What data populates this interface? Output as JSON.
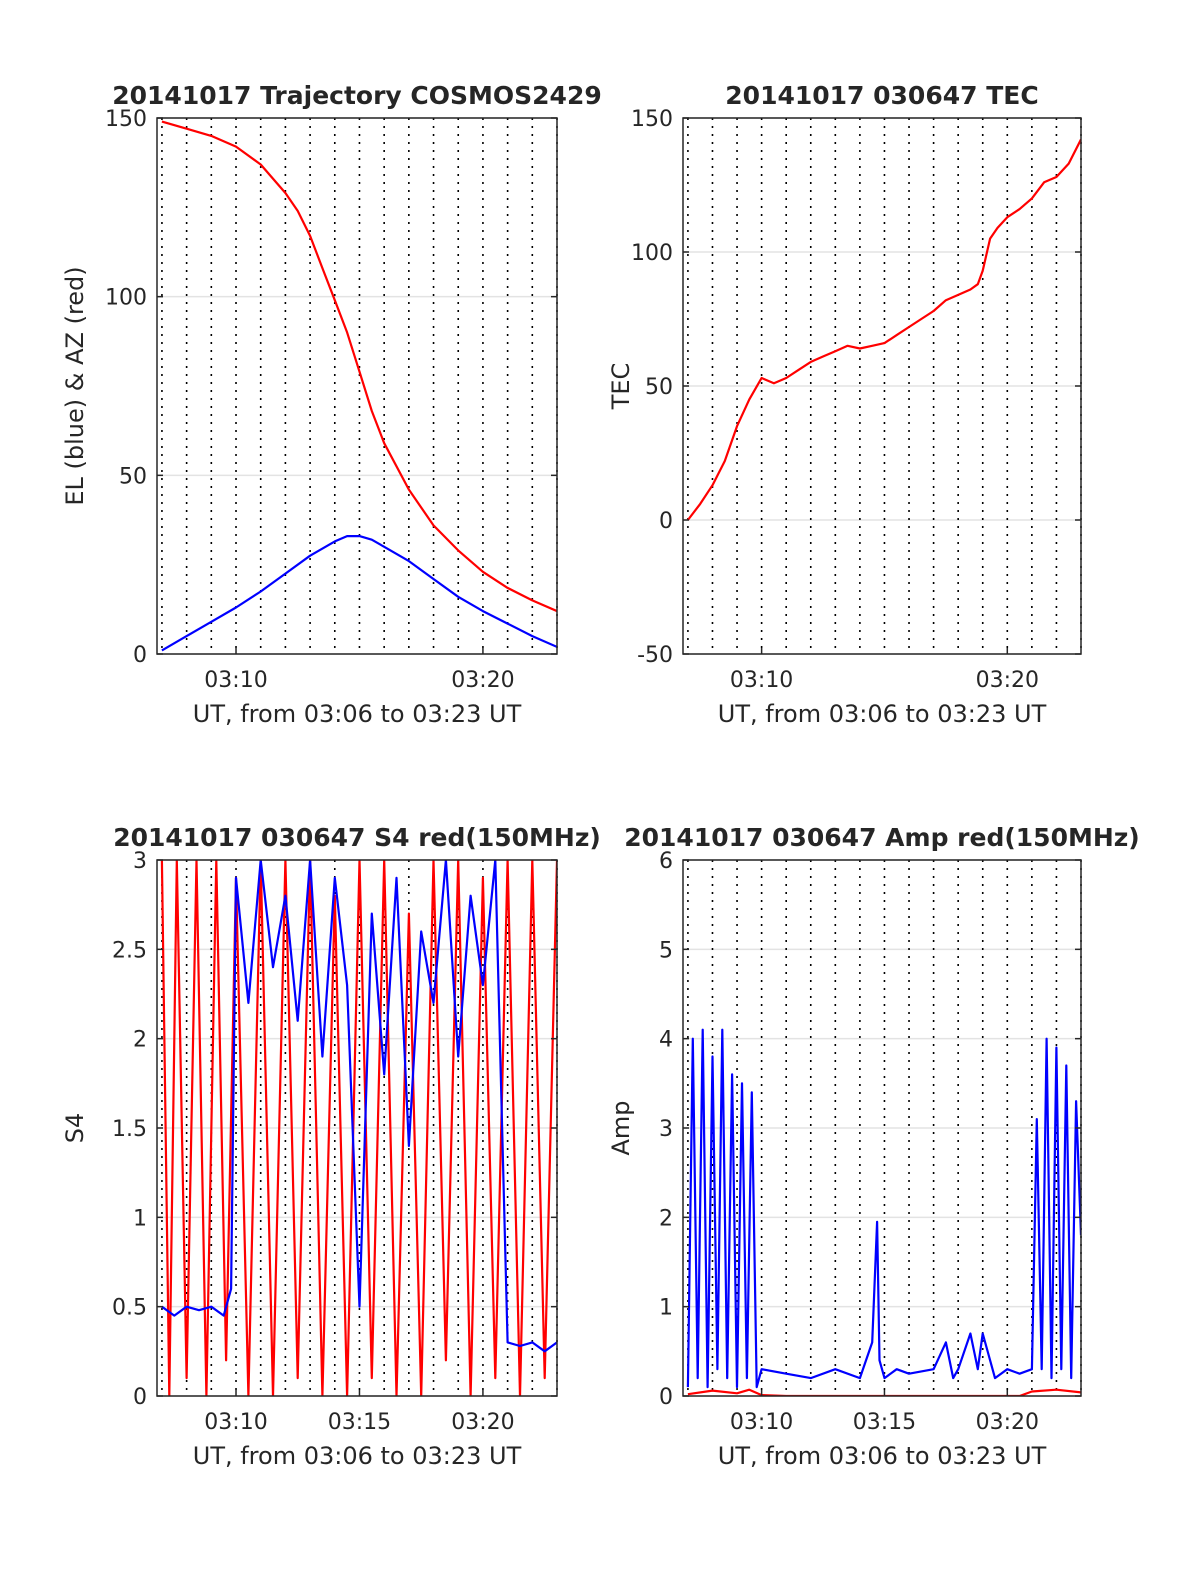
{
  "chart_data": [
    {
      "type": "line",
      "title": "20141017 Trajectory COSMOS2429",
      "xlabel": "UT, from 03:06 to 03:23 UT",
      "ylabel": "EL (blue) & AZ (red)",
      "xlim": [
        6.8,
        23.0
      ],
      "ylim": [
        0,
        150
      ],
      "xticks": [
        10,
        20
      ],
      "xtick_labels": [
        "03:10",
        "03:20"
      ],
      "yticks": [
        0,
        50,
        100,
        150
      ],
      "ytick_labels": [
        "0",
        "50",
        "100",
        "150"
      ],
      "grid": true,
      "series": [
        {
          "color": "#ff0000",
          "x": [
            7.0,
            8.0,
            9.0,
            10.0,
            11.0,
            12.0,
            12.5,
            13.0,
            13.5,
            14.0,
            14.5,
            15.0,
            15.5,
            16.0,
            17.0,
            18.0,
            19.0,
            20.0,
            21.0,
            22.0,
            23.0
          ],
          "y": [
            149,
            147,
            145,
            142,
            137,
            129,
            124,
            117,
            108,
            99,
            90,
            79,
            68,
            59,
            46,
            36,
            29,
            23,
            18.5,
            15,
            12
          ]
        },
        {
          "color": "#0000ff",
          "x": [
            7.0,
            8.0,
            9.0,
            10.0,
            11.0,
            12.0,
            13.0,
            14.0,
            14.5,
            15.0,
            15.5,
            16.0,
            17.0,
            18.0,
            19.0,
            20.0,
            21.0,
            22.0,
            23.0
          ],
          "y": [
            1,
            5,
            9,
            13,
            17.5,
            22.5,
            27.5,
            31.5,
            33,
            33,
            32,
            30,
            26,
            21,
            16,
            12,
            8.5,
            5,
            2
          ]
        }
      ]
    },
    {
      "type": "line",
      "title": "20141017 030647 TEC",
      "xlabel": "UT, from 03:06 to 03:23 UT",
      "ylabel": "TEC",
      "xlim": [
        6.8,
        23.0
      ],
      "ylim": [
        -50,
        150
      ],
      "xticks": [
        10,
        20
      ],
      "xtick_labels": [
        "03:10",
        "03:20"
      ],
      "yticks": [
        -50,
        0,
        50,
        100,
        150
      ],
      "ytick_labels": [
        "-50",
        "0",
        "50",
        "100",
        "150"
      ],
      "grid": true,
      "series": [
        {
          "color": "#ff0000",
          "x": [
            7.0,
            7.5,
            8.0,
            8.5,
            9.0,
            9.5,
            10.0,
            10.5,
            11.0,
            11.5,
            12.0,
            12.5,
            13.0,
            13.5,
            14.0,
            14.5,
            15.0,
            15.5,
            16.0,
            16.5,
            17.0,
            17.5,
            18.0,
            18.5,
            18.8,
            19.0,
            19.3,
            19.6,
            20.0,
            20.5,
            21.0,
            21.5,
            22.0,
            22.5,
            23.0
          ],
          "y": [
            0,
            6,
            13,
            22,
            35,
            45,
            53,
            51,
            53,
            56,
            59,
            61,
            63,
            65,
            64,
            65,
            66,
            69,
            72,
            75,
            78,
            82,
            84,
            86,
            88,
            93,
            105,
            109,
            113,
            116,
            120,
            126,
            128,
            133,
            142
          ]
        }
      ]
    },
    {
      "type": "line",
      "title": "20141017 030647 S4 red(150MHz)",
      "xlabel": "UT, from 03:06 to 03:23 UT",
      "ylabel": "S4",
      "xlim": [
        6.8,
        23.0
      ],
      "ylim": [
        0,
        3
      ],
      "xticks": [
        10,
        15,
        20
      ],
      "xtick_labels": [
        "03:10",
        "03:15",
        "03:20"
      ],
      "yticks": [
        0,
        0.5,
        1,
        1.5,
        2,
        2.5,
        3
      ],
      "ytick_labels": [
        "0",
        "0.5",
        "1",
        "1.5",
        "2",
        "2.5",
        "3"
      ],
      "grid": true,
      "series": [
        {
          "color": "#ff0000",
          "x": [
            7.0,
            7.3,
            7.6,
            8.0,
            8.4,
            8.8,
            9.2,
            9.6,
            10.0,
            10.5,
            11.0,
            11.5,
            12.0,
            12.5,
            13.0,
            13.5,
            14.0,
            14.5,
            15.0,
            15.5,
            16.0,
            16.5,
            17.0,
            17.5,
            18.0,
            18.5,
            19.0,
            19.5,
            20.0,
            20.5,
            21.0,
            21.5,
            22.0,
            22.5,
            23.0
          ],
          "y": [
            3,
            0,
            3,
            0.1,
            3,
            0,
            3,
            0.2,
            2.9,
            0,
            3,
            0,
            3,
            0.1,
            3,
            0,
            2.8,
            0,
            3,
            0.1,
            3,
            0,
            2.7,
            0,
            3,
            0.2,
            3,
            0,
            2.9,
            0.1,
            3,
            0,
            3,
            0.1,
            3
          ]
        },
        {
          "color": "#0000ff",
          "x": [
            7.0,
            7.5,
            8.0,
            8.5,
            9.0,
            9.5,
            9.8,
            10.0,
            10.5,
            11.0,
            11.5,
            12.0,
            12.5,
            13.0,
            13.5,
            14.0,
            14.5,
            15.0,
            15.5,
            16.0,
            16.5,
            17.0,
            17.5,
            18.0,
            18.5,
            19.0,
            19.5,
            20.0,
            20.5,
            21.0,
            21.5,
            22.0,
            22.5,
            23.0
          ],
          "y": [
            0.5,
            0.45,
            0.5,
            0.48,
            0.5,
            0.45,
            0.6,
            2.9,
            2.2,
            3,
            2.4,
            2.8,
            2.1,
            3,
            1.9,
            2.9,
            2.3,
            0.5,
            2.7,
            1.8,
            2.9,
            1.4,
            2.6,
            2.2,
            3,
            1.9,
            2.8,
            2.3,
            3,
            0.3,
            0.28,
            0.3,
            0.25,
            0.3
          ]
        }
      ]
    },
    {
      "type": "line",
      "title": "20141017 030647 Amp red(150MHz)",
      "xlabel": "UT, from 03:06 to 03:23 UT",
      "ylabel": "Amp",
      "xlim": [
        6.8,
        23.0
      ],
      "ylim": [
        0,
        6
      ],
      "xticks": [
        10,
        15,
        20
      ],
      "xtick_labels": [
        "03:10",
        "03:15",
        "03:20"
      ],
      "yticks": [
        0,
        1,
        2,
        3,
        4,
        5,
        6
      ],
      "ytick_labels": [
        "0",
        "1",
        "2",
        "3",
        "4",
        "5",
        "6"
      ],
      "grid": true,
      "series": [
        {
          "color": "#0000ff",
          "x": [
            7.0,
            7.2,
            7.4,
            7.6,
            7.8,
            8.0,
            8.2,
            8.4,
            8.6,
            8.8,
            9.0,
            9.2,
            9.4,
            9.6,
            9.8,
            10.0,
            11.0,
            12.0,
            13.0,
            14.0,
            14.5,
            14.7,
            14.8,
            15.0,
            15.5,
            16.0,
            17.0,
            17.5,
            17.8,
            18.0,
            18.5,
            18.8,
            19.0,
            19.5,
            20.0,
            20.5,
            21.0,
            21.2,
            21.4,
            21.6,
            21.8,
            22.0,
            22.2,
            22.4,
            22.6,
            22.8,
            23.0
          ],
          "y": [
            0.1,
            4.0,
            0.2,
            4.1,
            0.1,
            3.8,
            0.3,
            4.1,
            0.2,
            3.6,
            0.1,
            3.5,
            0.2,
            3.4,
            0.1,
            0.3,
            0.25,
            0.2,
            0.3,
            0.2,
            0.6,
            1.95,
            0.4,
            0.2,
            0.3,
            0.25,
            0.3,
            0.6,
            0.2,
            0.3,
            0.7,
            0.3,
            0.7,
            0.2,
            0.3,
            0.25,
            0.3,
            3.1,
            0.3,
            4.0,
            0.2,
            3.9,
            0.3,
            3.7,
            0.2,
            3.3,
            1.8
          ]
        },
        {
          "color": "#ff0000",
          "x": [
            7.0,
            8.0,
            9.0,
            9.5,
            10.0,
            11.0,
            13.0,
            15.0,
            17.0,
            19.0,
            20.5,
            21.0,
            22.0,
            23.0
          ],
          "y": [
            0.02,
            0.06,
            0.03,
            0.07,
            0.01,
            0,
            0,
            0,
            0,
            0,
            0,
            0.05,
            0.07,
            0.04
          ]
        }
      ]
    }
  ]
}
